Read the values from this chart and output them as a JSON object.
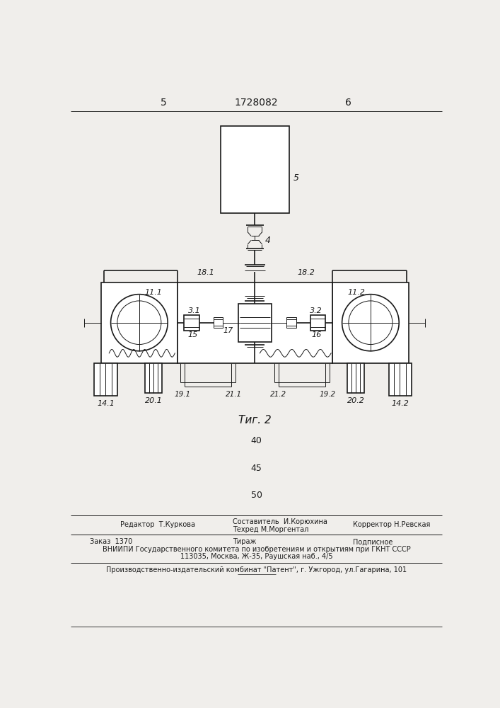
{
  "title": "1728082",
  "page_left": "5",
  "page_right": "6",
  "fig_label": "Τиг. 2",
  "bg_color": "#f0eeeb",
  "line_color": "#1a1a1a",
  "footer": {
    "editor": "Редактор  Т.Куркова",
    "composer": "Составитель  И.Корюхина",
    "corrector": "Корректор Н.Ревская",
    "techred": "Техред М.Моргентал",
    "order": "Заказ  1370",
    "tirazh": "Тираж",
    "podpisnoe": "Подписное",
    "vnipi1": "ВНИИПИ Государственного комитета по изобретениям и открытиям при ГКНТ СССР",
    "vnipi2": "113035, Москва, Ж-35, Раушская наб., 4/5",
    "patent": "Производственно-издательский комбинат \"Патент\", г. Ужгород, ул.Гагарина, 101"
  }
}
